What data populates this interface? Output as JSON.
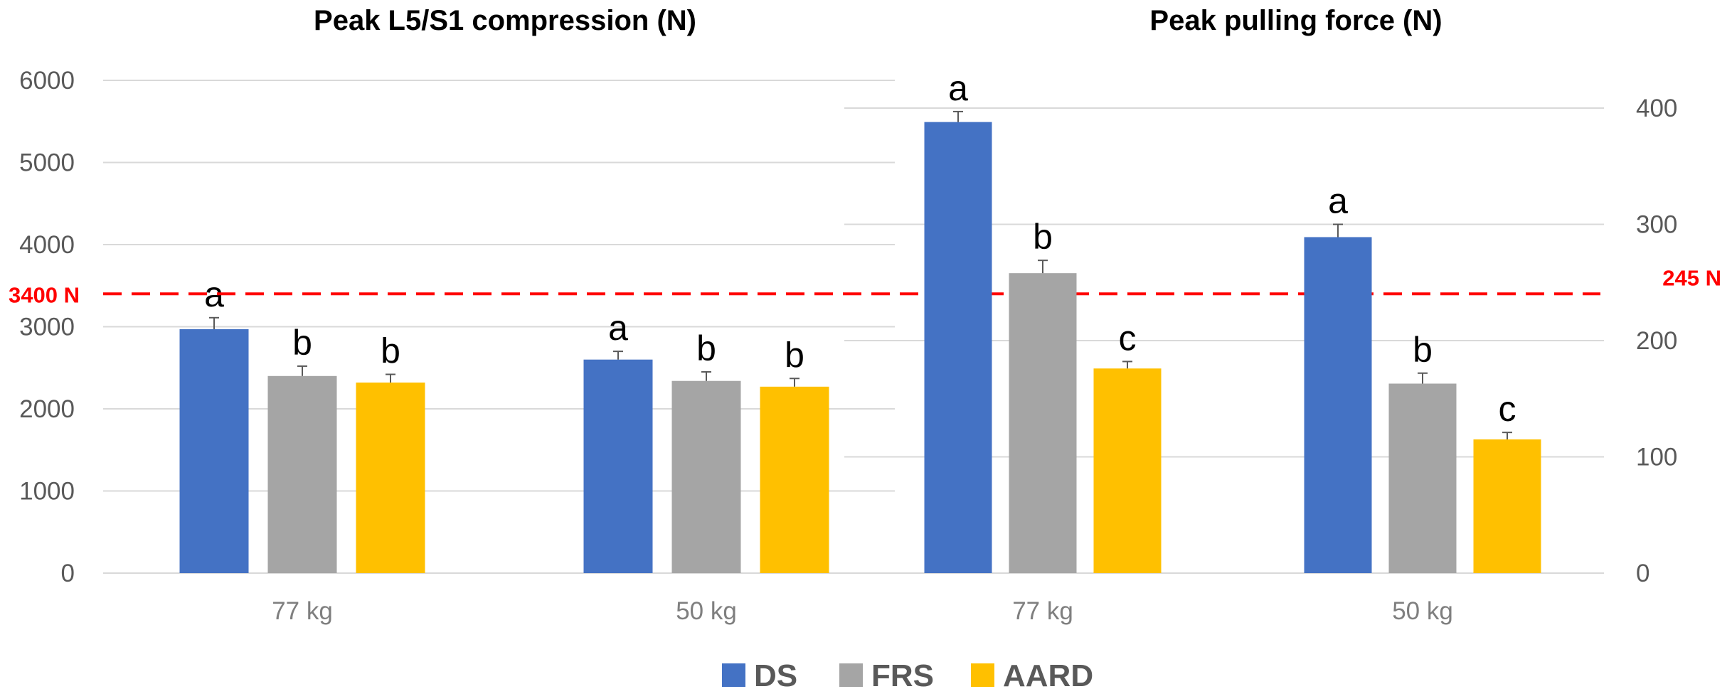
{
  "chart_data": [
    {
      "type": "bar",
      "title": "Peak L5/S1 compression (N)",
      "categories": [
        "77 kg",
        "50 kg"
      ],
      "ylim": [
        0,
        6000
      ],
      "yticks": [
        0,
        1000,
        2000,
        3000,
        4000,
        5000,
        6000
      ],
      "y_axis_side": "left",
      "grid": true,
      "series": [
        {
          "name": "DS",
          "values": [
            2970,
            2600
          ],
          "errors": [
            140,
            100
          ],
          "letters": [
            "a",
            "a"
          ]
        },
        {
          "name": "FRS",
          "values": [
            2400,
            2340
          ],
          "errors": [
            120,
            110
          ],
          "letters": [
            "b",
            "b"
          ]
        },
        {
          "name": "AARD",
          "values": [
            2320,
            2270
          ],
          "errors": [
            100,
            100
          ],
          "letters": [
            "b",
            "b"
          ]
        }
      ],
      "threshold": {
        "value": 3400,
        "label": "3400 N"
      }
    },
    {
      "type": "bar",
      "title": "Peak pulling force (N)",
      "categories": [
        "77 kg",
        "50 kg"
      ],
      "ylim": [
        0,
        400
      ],
      "yticks": [
        0,
        100,
        200,
        300,
        400
      ],
      "y_axis_side": "right",
      "grid": true,
      "series": [
        {
          "name": "DS",
          "values": [
            388,
            289
          ],
          "errors": [
            9,
            11
          ],
          "letters": [
            "a",
            "a"
          ]
        },
        {
          "name": "FRS",
          "values": [
            258,
            163
          ],
          "errors": [
            11,
            9
          ],
          "letters": [
            "b",
            "b"
          ]
        },
        {
          "name": "AARD",
          "values": [
            176,
            115
          ],
          "errors": [
            6,
            6
          ],
          "letters": [
            "c",
            "c"
          ]
        }
      ],
      "threshold": {
        "value": 245,
        "label": "245 N"
      }
    }
  ],
  "legend": {
    "placement": "bottom-center",
    "items": [
      {
        "label": "DS",
        "color": "#4472C4"
      },
      {
        "label": "FRS",
        "color": "#A5A5A5"
      },
      {
        "label": "AARD",
        "color": "#FFC000"
      }
    ]
  },
  "colors": {
    "grid": "#d9d9d9",
    "threshold": "#ff0000",
    "error_bar": "#595959"
  }
}
